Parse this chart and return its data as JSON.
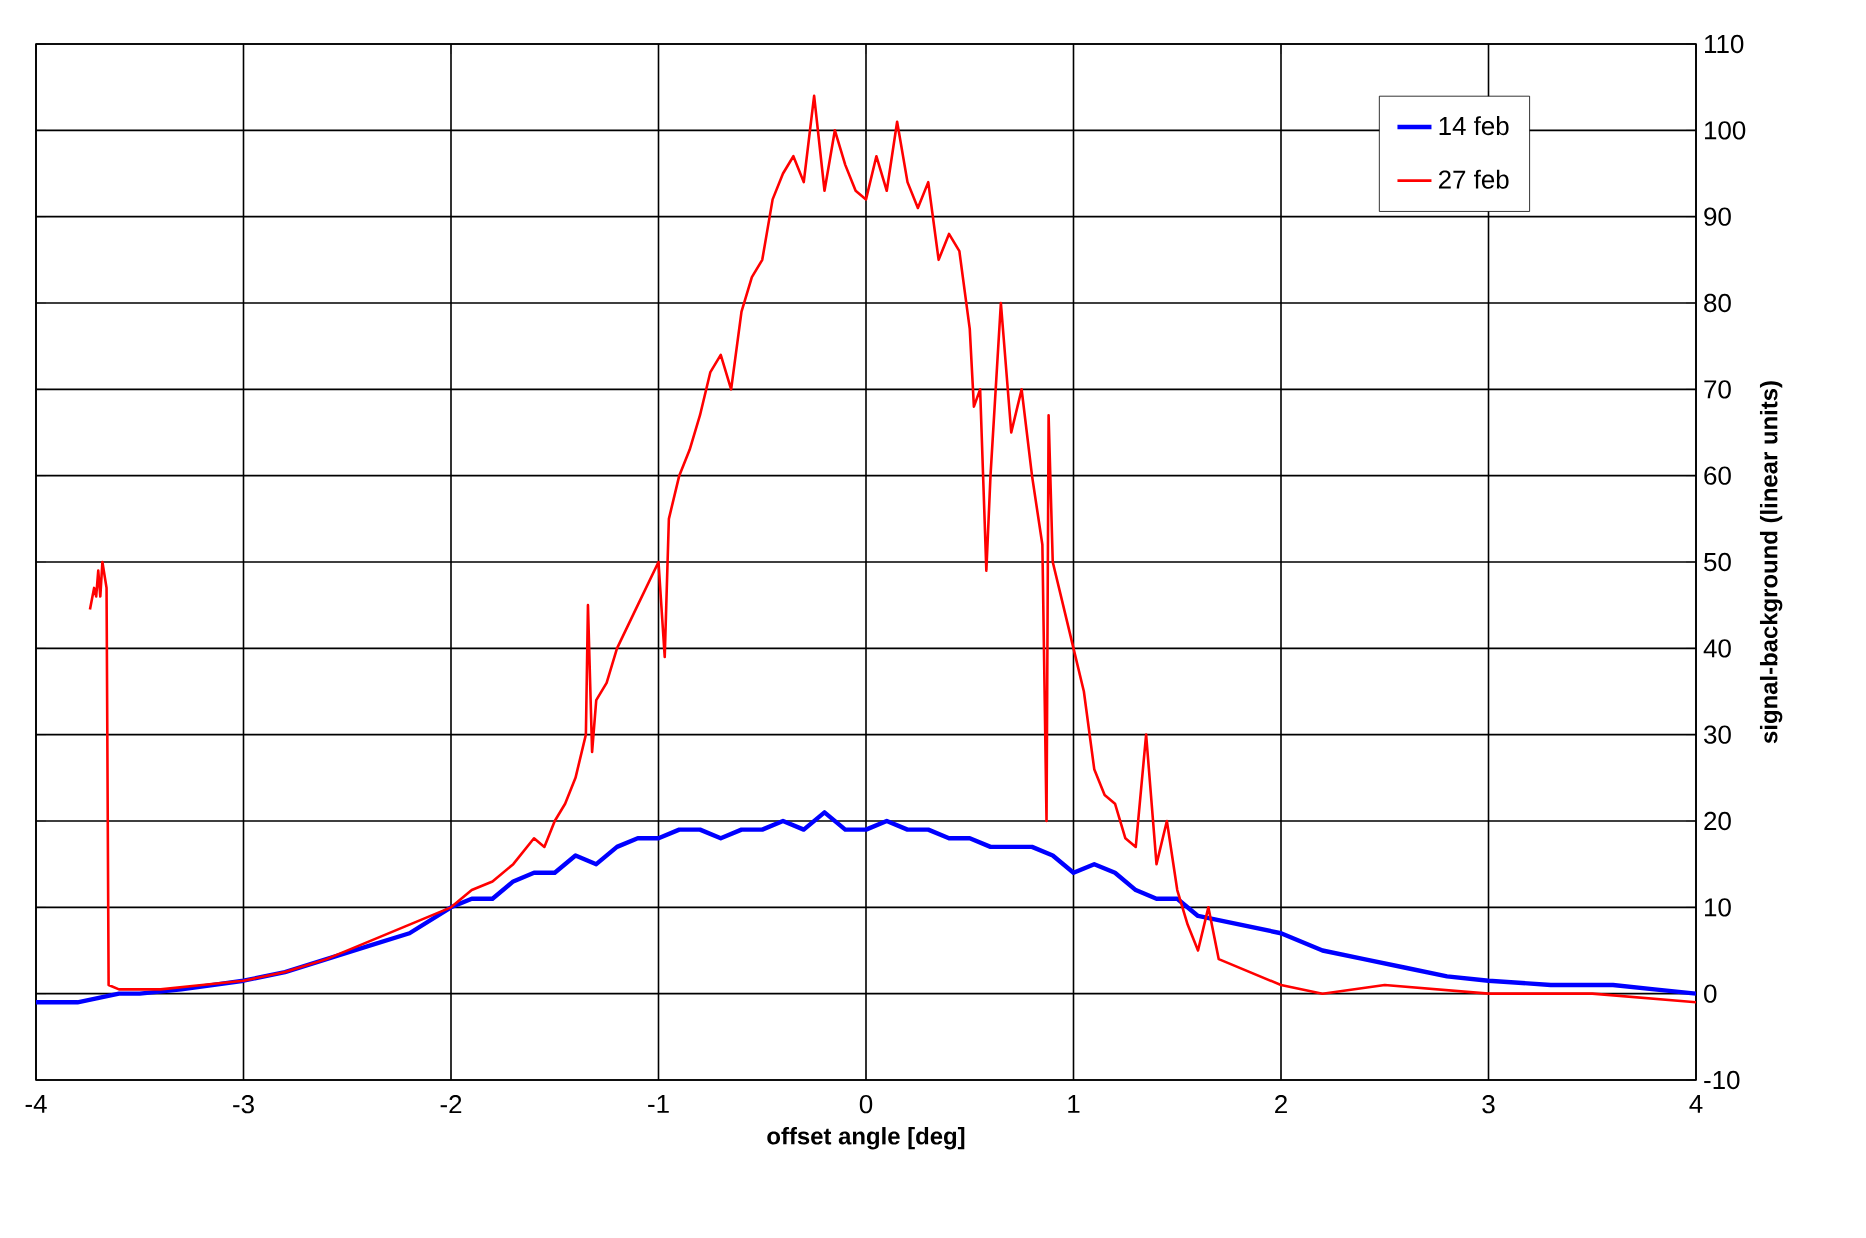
{
  "chart_data": {
    "type": "line",
    "xlabel": "offset angle [deg]",
    "ylabel": "signal-background (linear units)",
    "xlim": [
      -4,
      4
    ],
    "xticks": [
      -4,
      -3,
      -2,
      -1,
      0,
      1,
      2,
      3,
      4
    ],
    "ylim": [
      -10,
      110
    ],
    "yticks": [
      -10,
      0,
      10,
      20,
      30,
      40,
      50,
      60,
      70,
      80,
      90,
      100,
      110
    ],
    "grid": true,
    "legend": "top right",
    "marker": "none",
    "line_style": "solid",
    "series": [
      {
        "name": "14 feb",
        "color": "#0000ff",
        "x": [
          -4,
          -3.8,
          -3.6,
          -3.5,
          -3.3,
          -3.0,
          -2.8,
          -2.6,
          -2.4,
          -2.2,
          -2.0,
          -1.9,
          -1.8,
          -1.7,
          -1.6,
          -1.5,
          -1.4,
          -1.3,
          -1.2,
          -1.1,
          -1.0,
          -0.9,
          -0.8,
          -0.7,
          -0.6,
          -0.5,
          -0.4,
          -0.3,
          -0.2,
          -0.1,
          0,
          0.1,
          0.2,
          0.3,
          0.4,
          0.5,
          0.6,
          0.7,
          0.8,
          0.9,
          1.0,
          1.1,
          1.2,
          1.3,
          1.4,
          1.5,
          1.6,
          1.8,
          2.0,
          2.2,
          2.4,
          2.6,
          2.8,
          3.0,
          3.3,
          3.6,
          3.8,
          4.0
        ],
        "values": [
          -1,
          -1,
          0,
          0,
          0.5,
          1.5,
          2.5,
          4,
          5.5,
          7,
          10,
          11,
          11,
          13,
          14,
          14,
          16,
          15,
          17,
          18,
          18,
          19,
          19,
          18,
          19,
          19,
          20,
          19,
          21,
          19,
          19,
          20,
          19,
          19,
          18,
          18,
          17,
          17,
          17,
          16,
          14,
          15,
          14,
          12,
          11,
          11,
          9,
          8,
          7,
          5,
          4,
          3,
          2,
          1.5,
          1,
          1,
          0.5,
          0
        ]
      },
      {
        "name": "27 feb",
        "color": "#ff0000",
        "x": [
          -3.74,
          -3.72,
          -3.71,
          -3.7,
          -3.69,
          -3.68,
          -3.66,
          -3.65,
          -3.6,
          -3.4,
          -3.2,
          -3.0,
          -2.8,
          -2.6,
          -2.4,
          -2.2,
          -2.0,
          -1.9,
          -1.8,
          -1.7,
          -1.6,
          -1.55,
          -1.5,
          -1.45,
          -1.4,
          -1.35,
          -1.34,
          -1.32,
          -1.3,
          -1.25,
          -1.2,
          -1.1,
          -1.0,
          -0.97,
          -0.95,
          -0.9,
          -0.85,
          -0.8,
          -0.75,
          -0.7,
          -0.65,
          -0.6,
          -0.55,
          -0.5,
          -0.45,
          -0.4,
          -0.35,
          -0.3,
          -0.25,
          -0.2,
          -0.15,
          -0.1,
          -0.05,
          0,
          0.05,
          0.1,
          0.15,
          0.2,
          0.25,
          0.3,
          0.35,
          0.4,
          0.45,
          0.5,
          0.52,
          0.55,
          0.58,
          0.6,
          0.65,
          0.7,
          0.75,
          0.8,
          0.85,
          0.87,
          0.88,
          0.9,
          0.95,
          1.0,
          1.05,
          1.1,
          1.15,
          1.2,
          1.25,
          1.3,
          1.35,
          1.4,
          1.45,
          1.5,
          1.55,
          1.6,
          1.65,
          1.7,
          1.8,
          2.0,
          2.2,
          2.5,
          3.0,
          3.5,
          4.0
        ],
        "values": [
          44.5,
          47,
          46,
          49,
          46,
          50,
          47,
          1,
          0.5,
          0.5,
          1,
          1.5,
          2.5,
          4,
          6,
          8,
          10,
          12,
          13,
          15,
          18,
          17,
          20,
          22,
          25,
          30,
          45,
          28,
          34,
          36,
          40,
          45,
          50,
          39,
          55,
          60,
          63,
          67,
          72,
          74,
          70,
          79,
          83,
          85,
          92,
          95,
          97,
          94,
          104,
          93,
          100,
          96,
          93,
          92,
          97,
          93,
          101,
          94,
          91,
          94,
          85,
          88,
          86,
          77,
          68,
          70,
          49,
          60,
          80,
          65,
          70,
          60,
          52,
          20,
          67,
          50,
          45,
          40,
          35,
          26,
          23,
          22,
          18,
          17,
          30,
          15,
          20,
          12,
          8,
          5,
          10,
          4,
          3,
          1,
          0,
          1,
          0,
          0,
          -1
        ]
      }
    ]
  }
}
